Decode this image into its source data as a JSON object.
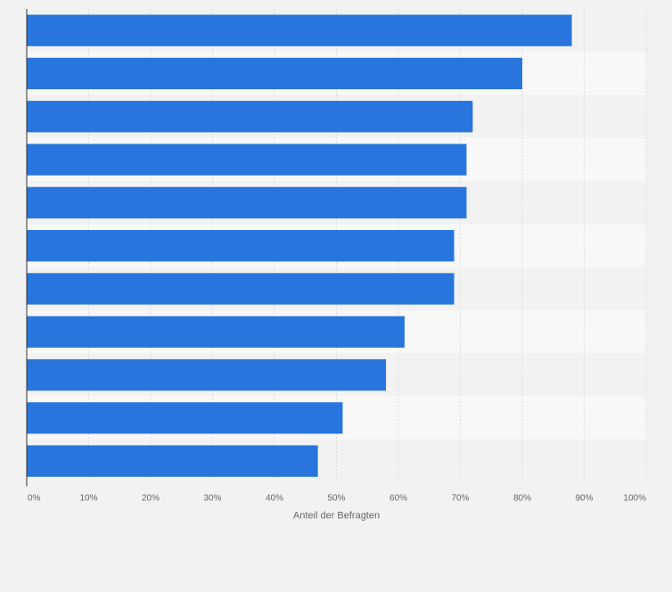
{
  "chart_data": {
    "type": "bar",
    "orientation": "horizontal",
    "categories": [
      "",
      "",
      "",
      "",
      "",
      "",
      "",
      "",
      "",
      "",
      ""
    ],
    "values": [
      88,
      80,
      72,
      71,
      71,
      69,
      69,
      61,
      58,
      51,
      47
    ],
    "xlabel": "Anteil der Befragten",
    "ylabel": "",
    "xlim": [
      0,
      100
    ],
    "ticks": [
      0,
      10,
      20,
      30,
      40,
      50,
      60,
      70,
      80,
      90,
      100
    ],
    "tick_labels": [
      "0%",
      "10%",
      "20%",
      "30%",
      "40%",
      "50%",
      "60%",
      "70%",
      "80%",
      "90%",
      "100%"
    ],
    "grid": true,
    "colors": {
      "bar": "#2876dd",
      "page_background": "#f2f2f2",
      "row_light": "#f8f8f8",
      "row_dark": "#f2f2f2",
      "gridline": "#dcdcdc",
      "axis": "#333333",
      "text": "#666666"
    }
  }
}
